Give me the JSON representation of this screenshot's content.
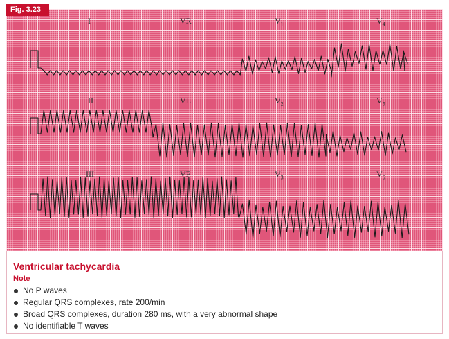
{
  "figure": {
    "label": "Fig. 3.23",
    "colors": {
      "grid_background": "#e0567a",
      "accent": "#c8102e",
      "trace": "#1a1a1a"
    }
  },
  "leads": {
    "row1": {
      "limb": "I",
      "augmented": "VR",
      "chest_base": "V",
      "chest_sub": "1",
      "chest2_base": "V",
      "chest2_sub": "4"
    },
    "row2": {
      "limb": "II",
      "augmented": "VL",
      "chest_base": "V",
      "chest_sub": "2",
      "chest2_base": "V",
      "chest2_sub": "5"
    },
    "row3": {
      "limb": "III",
      "augmented": "VF",
      "chest_base": "V",
      "chest_sub": "3",
      "chest2_base": "V",
      "chest2_sub": "6"
    }
  },
  "caption": {
    "title": "Ventricular tachycardia",
    "note_heading": "Note",
    "bullets": [
      "No P waves",
      "Regular QRS complexes, rate 200/min",
      "Broad QRS complexes, duration 280 ms, with a very abnormal shape",
      "No identifiable T waves"
    ]
  }
}
